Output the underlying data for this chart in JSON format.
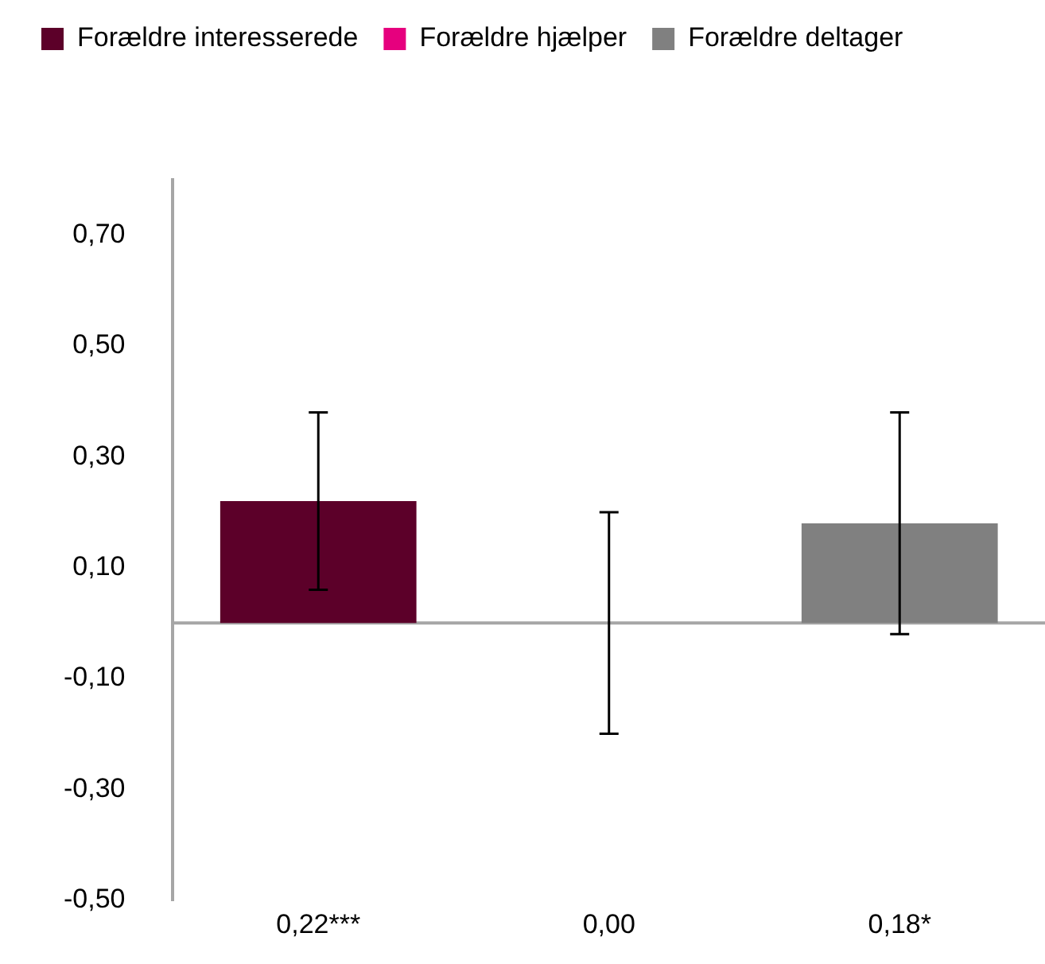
{
  "chart_data": {
    "type": "bar",
    "stacked": true,
    "categories": [
      "0,22***",
      "0,00",
      "0,18*"
    ],
    "series": [
      {
        "name": "Forældre interesserede",
        "color": "#5c0029",
        "values": [
          0.22,
          null,
          null
        ],
        "errors": [
          0.16,
          null,
          null
        ]
      },
      {
        "name": "Forældre hjælper",
        "color": "#e6007e",
        "values": [
          null,
          0,
          null
        ],
        "errors": [
          null,
          0.2,
          null
        ]
      },
      {
        "name": "Forældre deltager",
        "color": "#808080",
        "values": [
          null,
          null,
          0.18
        ],
        "errors": [
          null,
          null,
          0.2
        ]
      }
    ],
    "ylim": [
      -0.5,
      0.8
    ],
    "yticks": [
      {
        "value": -0.5,
        "label": "-0,50"
      },
      {
        "value": -0.3,
        "label": "-0,30"
      },
      {
        "value": -0.1,
        "label": "-0,10"
      },
      {
        "value": 0.1,
        "label": "0,10"
      },
      {
        "value": 0.3,
        "label": "0,30"
      },
      {
        "value": 0.5,
        "label": "0,50"
      },
      {
        "value": 0.7,
        "label": "0,70"
      }
    ],
    "ref_lines": [
      {
        "axis": "y",
        "value": 0,
        "color": "#a6a6a6"
      }
    ],
    "grid": false,
    "legend": "top left"
  }
}
